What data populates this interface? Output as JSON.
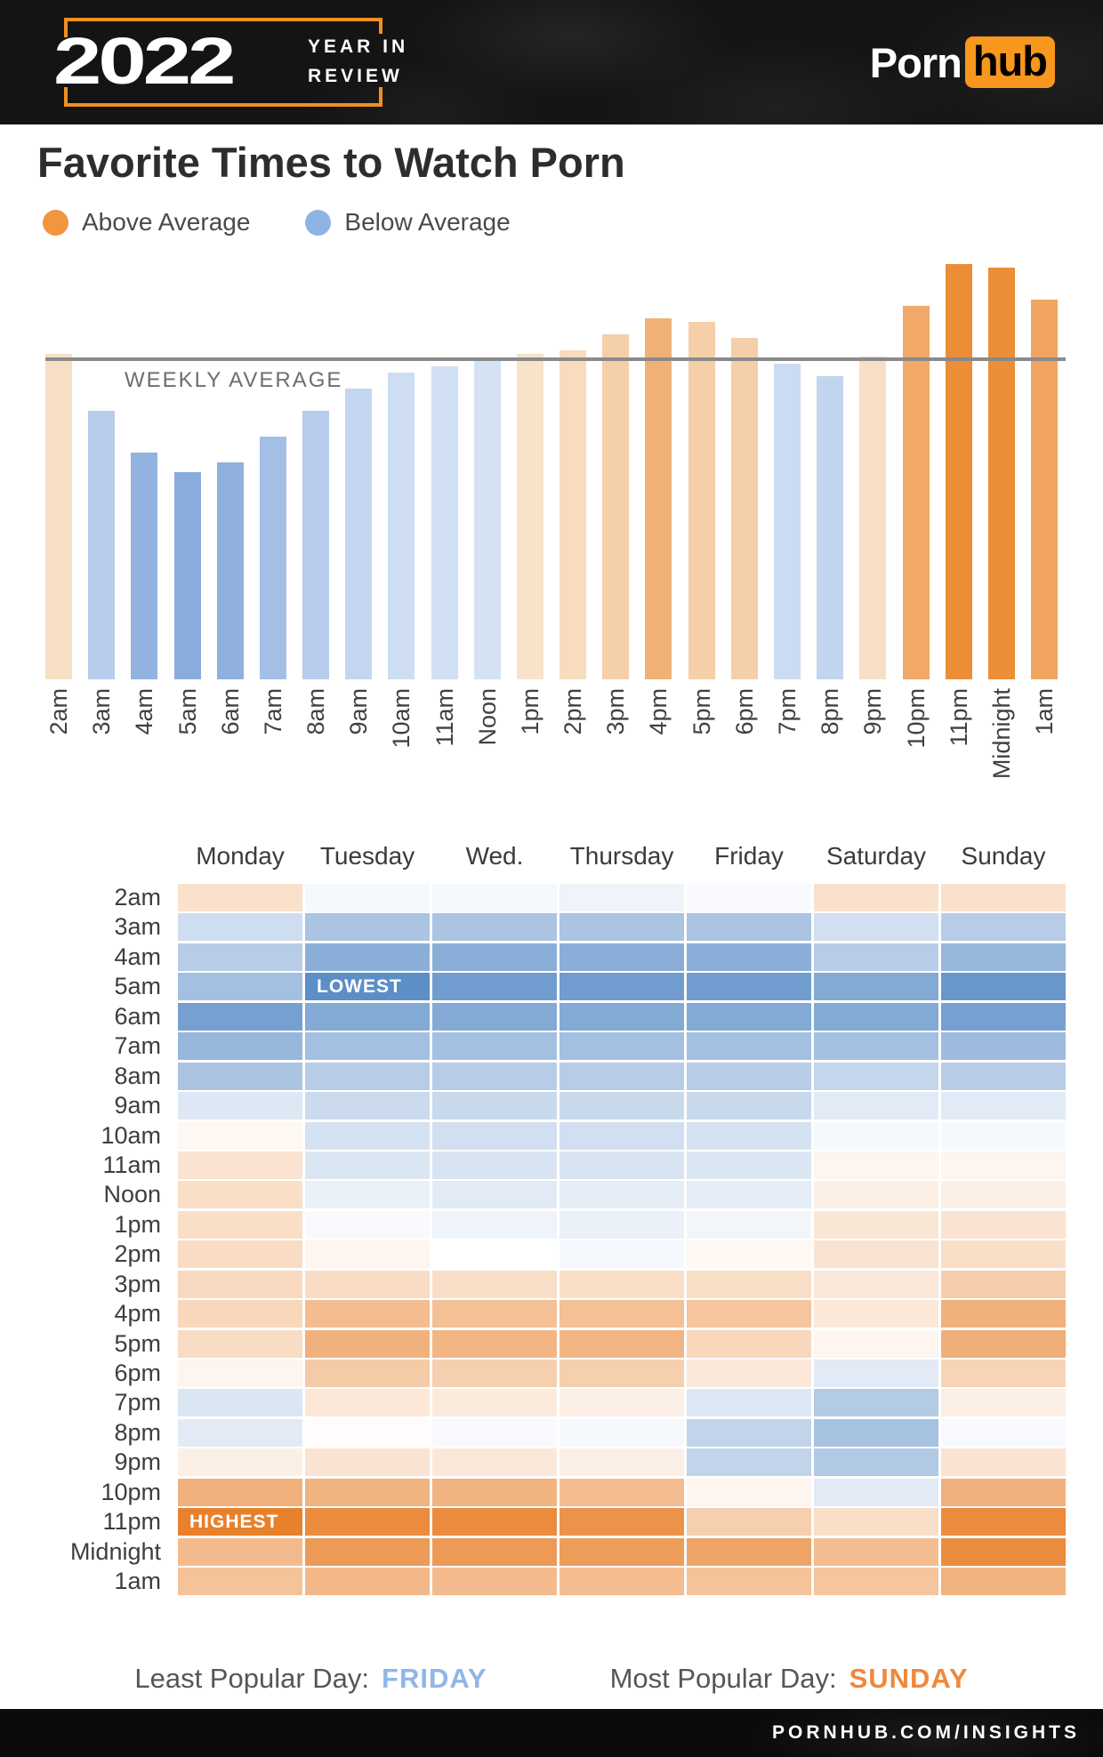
{
  "header": {
    "year": "2022",
    "tagline_line1": "YEAR IN",
    "tagline_line2": "REVIEW",
    "frame_color": "#F0911E",
    "brand": {
      "word1": "Porn",
      "word2": "hub",
      "hub_bg": "#F7971D"
    }
  },
  "title": "Favorite Times to Watch Porn",
  "legend": {
    "items": [
      {
        "label": "Above Average",
        "color": "#F2953F"
      },
      {
        "label": "Below Average",
        "color": "#8FB4E4"
      }
    ]
  },
  "chart_data": [
    {
      "type": "bar",
      "title": "Favorite Times to Watch Porn — hourly traffic relative to weekly average",
      "categories": [
        "2am",
        "3am",
        "4am",
        "5am",
        "6am",
        "7am",
        "8am",
        "9am",
        "10am",
        "11am",
        "Noon",
        "1pm",
        "2pm",
        "3pm",
        "4pm",
        "5pm",
        "6pm",
        "7pm",
        "8pm",
        "9pm",
        "10pm",
        "11pm",
        "Midnight",
        "1am"
      ],
      "values": [
        102,
        84,
        71,
        65,
        68,
        76,
        84,
        91,
        96,
        98,
        100,
        102,
        103,
        108,
        113,
        112,
        107,
        99,
        95,
        101,
        117,
        130,
        129,
        119
      ],
      "bar_colors": [
        "#F7DFC3",
        "#B8CDEC",
        "#92B2DF",
        "#8AACDC",
        "#8FAFDD",
        "#A3BFE5",
        "#B7CCEB",
        "#C4D6EF",
        "#CDDDF2",
        "#D2E0F3",
        "#D5E2F4",
        "#F8E2CA",
        "#F7DCBE",
        "#F5CFA8",
        "#F0B177",
        "#F5CFA8",
        "#F5CFA9",
        "#CBDCF2",
        "#C2D5EE",
        "#F8E0C6",
        "#F1A868",
        "#EC8D38",
        "#EC8D38",
        "#F0A460"
      ],
      "average_line_label": "WEEKLY AVERAGE",
      "average_value": 100,
      "ylabel": "",
      "xlabel": "",
      "ylim": [
        0,
        132
      ],
      "grid": false,
      "legend_position": "top-left"
    },
    {
      "type": "heatmap",
      "columns": [
        "Monday",
        "Tuesday",
        "Wed.",
        "Thursday",
        "Friday",
        "Saturday",
        "Sunday"
      ],
      "rows": [
        "2am",
        "3am",
        "4am",
        "5am",
        "6am",
        "7am",
        "8am",
        "9am",
        "10am",
        "11am",
        "Noon",
        "1pm",
        "2pm",
        "3pm",
        "4pm",
        "5pm",
        "6pm",
        "7pm",
        "8pm",
        "9pm",
        "10pm",
        "11pm",
        "Midnight",
        "1am"
      ],
      "values": [
        [
          1.2,
          -0.3,
          -0.3,
          -0.5,
          -0.2,
          1.2,
          1.2
        ],
        [
          -1.5,
          -2.6,
          -2.6,
          -2.6,
          -2.6,
          -1.4,
          -2.2
        ],
        [
          -2.2,
          -3.6,
          -3.6,
          -3.6,
          -3.6,
          -2.2,
          -3.2
        ],
        [
          -2.8,
          -5.0,
          -4.4,
          -4.4,
          -4.4,
          -3.8,
          -4.6
        ],
        [
          -4.2,
          -3.8,
          -3.8,
          -3.8,
          -3.8,
          -3.8,
          -4.2
        ],
        [
          -3.2,
          -2.8,
          -2.8,
          -2.8,
          -2.8,
          -2.8,
          -3.0
        ],
        [
          -2.6,
          -2.2,
          -2.2,
          -2.2,
          -2.2,
          -1.8,
          -2.2
        ],
        [
          -1.0,
          -1.6,
          -1.7,
          -1.7,
          -1.7,
          -0.9,
          -0.9
        ],
        [
          0.3,
          -1.3,
          -1.4,
          -1.4,
          -1.3,
          -0.3,
          -0.3
        ],
        [
          1.1,
          -1.1,
          -1.2,
          -1.2,
          -1.1,
          0.4,
          0.4
        ],
        [
          1.3,
          -0.6,
          -0.9,
          -0.8,
          -0.8,
          0.6,
          0.6
        ],
        [
          1.3,
          -0.2,
          -0.5,
          -0.6,
          -0.4,
          1.0,
          1.1
        ],
        [
          1.4,
          0.4,
          0.0,
          -0.3,
          0.3,
          1.1,
          1.3
        ],
        [
          1.5,
          1.4,
          1.3,
          1.3,
          1.3,
          0.9,
          2.0
        ],
        [
          1.6,
          2.6,
          2.5,
          2.5,
          2.3,
          0.9,
          3.1
        ],
        [
          1.4,
          3.1,
          2.9,
          2.9,
          1.6,
          0.4,
          3.2
        ],
        [
          0.4,
          2.1,
          1.9,
          1.9,
          0.9,
          -0.9,
          1.7
        ],
        [
          -1.1,
          0.9,
          0.8,
          0.6,
          -1.0,
          -2.3,
          0.6
        ],
        [
          -0.9,
          0.1,
          -0.2,
          -0.3,
          -1.9,
          -2.7,
          -0.2
        ],
        [
          0.6,
          1.1,
          0.9,
          0.6,
          -1.9,
          -2.4,
          1.1
        ],
        [
          3.1,
          3.0,
          3.0,
          2.6,
          0.4,
          -0.9,
          3.1
        ],
        [
          5.0,
          4.6,
          4.6,
          4.3,
          1.9,
          1.3,
          4.6
        ],
        [
          2.7,
          4.0,
          4.0,
          3.9,
          3.6,
          2.6,
          4.6
        ],
        [
          2.4,
          2.8,
          2.7,
          2.6,
          2.4,
          2.3,
          3.0
        ]
      ],
      "scale": {
        "description": "relative activity vs weekly average; negative = below average (blue), positive = above average (orange)",
        "domain": [
          -5,
          5
        ],
        "below_color": "#5C8EC8",
        "above_color": "#E8812C",
        "zero_color": "#FFFFFF"
      },
      "annotations": [
        {
          "row": "11pm",
          "col": "Monday",
          "label": "HIGHEST"
        },
        {
          "row": "5am",
          "col": "Tuesday",
          "label": "LOWEST"
        }
      ]
    }
  ],
  "captions": {
    "least": {
      "label": "Least Popular Day:",
      "value": "FRIDAY",
      "color": "#90B6E8"
    },
    "most": {
      "label": "Most Popular Day:",
      "value": "SUNDAY",
      "color": "#F0883B"
    }
  },
  "footer": {
    "text": "PORNHUB.COM/INSIGHTS"
  }
}
